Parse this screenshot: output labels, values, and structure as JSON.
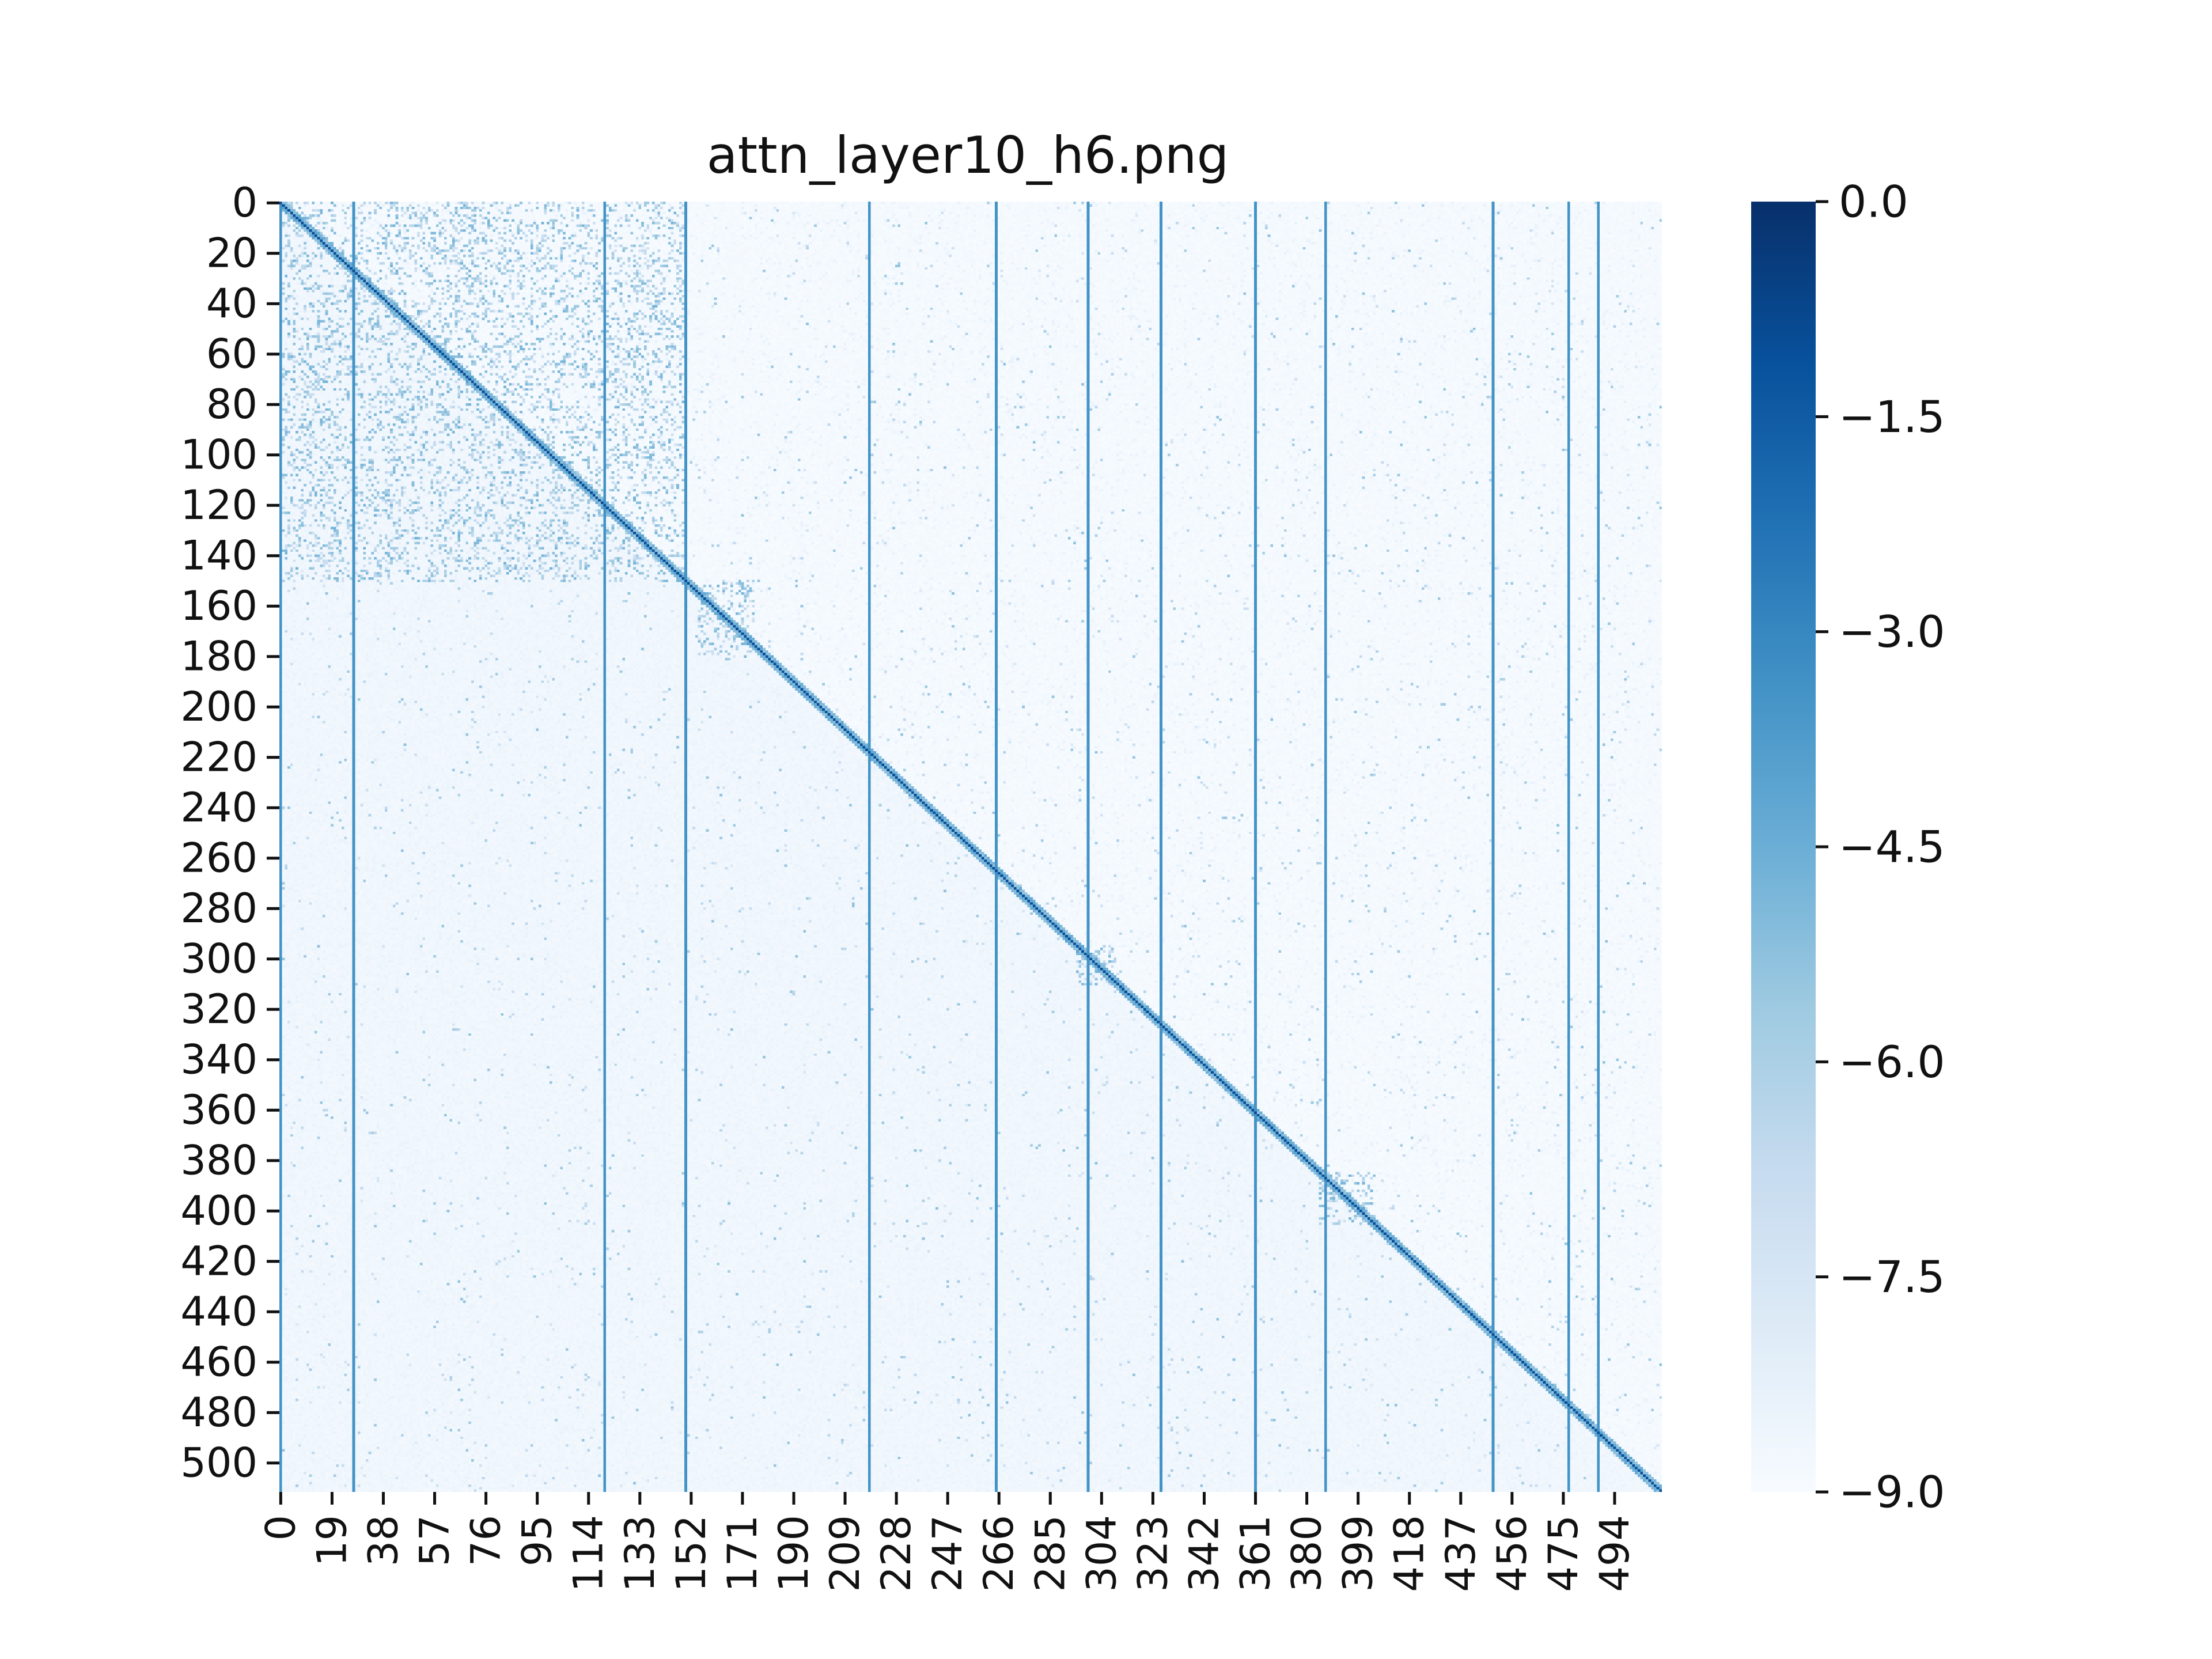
{
  "chart_data": {
    "type": "heatmap",
    "title": "attn_layer10_h6.png",
    "xlabel": "",
    "ylabel": "",
    "matrix_size": 512,
    "x_tick_labels": [
      "0",
      "19",
      "38",
      "57",
      "76",
      "95",
      "114",
      "133",
      "152",
      "171",
      "190",
      "209",
      "228",
      "247",
      "266",
      "285",
      "304",
      "323",
      "342",
      "361",
      "380",
      "399",
      "418",
      "437",
      "456",
      "475",
      "494"
    ],
    "x_tick_step": 19,
    "y_tick_labels": [
      "0",
      "20",
      "40",
      "60",
      "80",
      "100",
      "120",
      "140",
      "160",
      "180",
      "200",
      "220",
      "240",
      "260",
      "280",
      "300",
      "320",
      "340",
      "360",
      "380",
      "400",
      "420",
      "440",
      "460",
      "480",
      "500"
    ],
    "y_tick_step": 20,
    "colormap": "Blues",
    "colorbar": {
      "range": [
        -9.0,
        0.0
      ],
      "tick_values": [
        0.0,
        -1.5,
        -3.0,
        -4.5,
        -6.0,
        -7.5,
        -9.0
      ],
      "tick_labels": [
        "0.0",
        "−1.5",
        "−3.0",
        "−4.5",
        "−6.0",
        "−7.5",
        "−9.0"
      ]
    },
    "strong_key_columns": [
      0,
      27,
      120,
      150,
      218,
      265,
      299,
      326,
      361,
      387,
      449,
      477,
      488
    ],
    "block_regions": [
      {
        "rows": [
          0,
          150
        ],
        "cols": [
          0,
          150
        ]
      },
      {
        "rows": [
          295,
          310
        ],
        "cols": [
          295,
          310
        ]
      },
      {
        "rows": [
          150,
          180
        ],
        "cols": [
          155,
          175
        ]
      },
      {
        "rows": [
          385,
          405
        ],
        "cols": [
          385,
          405
        ]
      }
    ],
    "background_value": -9.0,
    "diagonal_value": -1.0,
    "colors": {
      "cmap_light": "#f7fbff",
      "cmap_dark": "#08306b",
      "column_line": "#2a7fc0"
    }
  }
}
